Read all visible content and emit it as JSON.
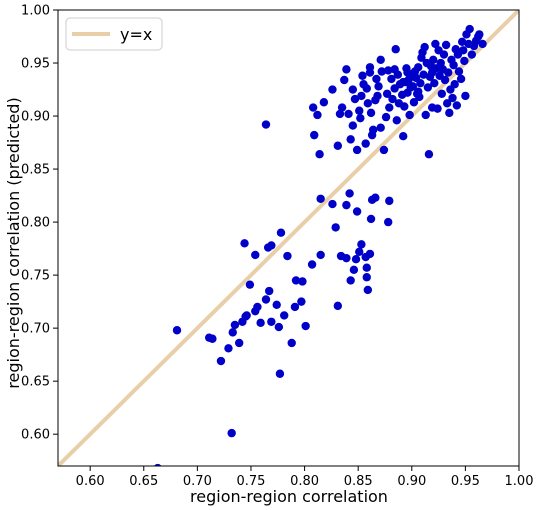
{
  "chart_data": {
    "type": "scatter",
    "title": "",
    "xlabel": "region-region correlation",
    "ylabel": "region-region correlation (predicted)",
    "xlim": [
      0.57,
      1.0
    ],
    "ylim": [
      0.57,
      1.0
    ],
    "xticks": [
      "0.60",
      "0.65",
      "0.70",
      "0.75",
      "0.80",
      "0.85",
      "0.90",
      "0.95",
      "1.00"
    ],
    "yticks": [
      "0.60",
      "0.65",
      "0.70",
      "0.75",
      "0.80",
      "0.85",
      "0.90",
      "0.95",
      "1.00"
    ],
    "grid": false,
    "legend_position": "top-left",
    "reference_line": {
      "name": "y=x",
      "color": "#e8cfa8"
    },
    "point_color": "#0000c8",
    "points": [
      [
        0.663,
        0.568
      ],
      [
        0.732,
        0.601
      ],
      [
        0.777,
        0.657
      ],
      [
        0.681,
        0.698
      ],
      [
        0.711,
        0.691
      ],
      [
        0.714,
        0.69
      ],
      [
        0.722,
        0.669
      ],
      [
        0.729,
        0.681
      ],
      [
        0.733,
        0.696
      ],
      [
        0.735,
        0.703
      ],
      [
        0.739,
        0.686
      ],
      [
        0.742,
        0.706
      ],
      [
        0.745,
        0.711
      ],
      [
        0.746,
        0.712
      ],
      [
        0.749,
        0.741
      ],
      [
        0.754,
        0.716
      ],
      [
        0.756,
        0.72
      ],
      [
        0.759,
        0.705
      ],
      [
        0.764,
        0.727
      ],
      [
        0.767,
        0.735
      ],
      [
        0.769,
        0.706
      ],
      [
        0.774,
        0.722
      ],
      [
        0.776,
        0.701
      ],
      [
        0.781,
        0.712
      ],
      [
        0.788,
        0.686
      ],
      [
        0.791,
        0.72
      ],
      [
        0.797,
        0.725
      ],
      [
        0.792,
        0.745
      ],
      [
        0.798,
        0.744
      ],
      [
        0.801,
        0.702
      ],
      [
        0.744,
        0.78
      ],
      [
        0.754,
        0.769
      ],
      [
        0.766,
        0.776
      ],
      [
        0.769,
        0.778
      ],
      [
        0.778,
        0.79
      ],
      [
        0.784,
        0.768
      ],
      [
        0.807,
        0.76
      ],
      [
        0.815,
        0.769
      ],
      [
        0.815,
        0.822
      ],
      [
        0.826,
        0.817
      ],
      [
        0.829,
        0.795
      ],
      [
        0.834,
        0.768
      ],
      [
        0.839,
        0.766
      ],
      [
        0.839,
        0.816
      ],
      [
        0.842,
        0.827
      ],
      [
        0.843,
        0.745
      ],
      [
        0.846,
        0.755
      ],
      [
        0.848,
        0.765
      ],
      [
        0.849,
        0.81
      ],
      [
        0.851,
        0.772
      ],
      [
        0.853,
        0.779
      ],
      [
        0.857,
        0.767
      ],
      [
        0.858,
        0.748
      ],
      [
        0.859,
        0.736
      ],
      [
        0.861,
        0.77
      ],
      [
        0.862,
        0.803
      ],
      [
        0.863,
        0.821
      ],
      [
        0.866,
        0.823
      ],
      [
        0.878,
        0.8
      ],
      [
        0.879,
        0.82
      ],
      [
        0.831,
        0.721
      ],
      [
        0.858,
        0.757
      ],
      [
        0.764,
        0.892
      ],
      [
        0.808,
        0.908
      ],
      [
        0.812,
        0.901
      ],
      [
        0.809,
        0.882
      ],
      [
        0.814,
        0.864
      ],
      [
        0.818,
        0.913
      ],
      [
        0.826,
        0.925
      ],
      [
        0.831,
        0.872
      ],
      [
        0.833,
        0.902
      ],
      [
        0.835,
        0.908
      ],
      [
        0.837,
        0.934
      ],
      [
        0.839,
        0.944
      ],
      [
        0.841,
        0.902
      ],
      [
        0.843,
        0.878
      ],
      [
        0.845,
        0.891
      ],
      [
        0.847,
        0.916
      ],
      [
        0.849,
        0.868
      ],
      [
        0.851,
        0.905
      ],
      [
        0.853,
        0.919
      ],
      [
        0.854,
        0.938
      ],
      [
        0.855,
        0.93
      ],
      [
        0.857,
        0.874
      ],
      [
        0.858,
        0.926
      ],
      [
        0.859,
        0.912
      ],
      [
        0.861,
        0.946
      ],
      [
        0.862,
        0.903
      ],
      [
        0.863,
        0.882
      ],
      [
        0.864,
        0.887
      ],
      [
        0.866,
        0.915
      ],
      [
        0.867,
        0.935
      ],
      [
        0.869,
        0.928
      ],
      [
        0.871,
        0.889
      ],
      [
        0.872,
        0.942
      ],
      [
        0.874,
        0.868
      ],
      [
        0.876,
        0.899
      ],
      [
        0.877,
        0.921
      ],
      [
        0.879,
        0.908
      ],
      [
        0.881,
        0.935
      ],
      [
        0.882,
        0.916
      ],
      [
        0.884,
        0.926
      ],
      [
        0.885,
        0.963
      ],
      [
        0.886,
        0.896
      ],
      [
        0.887,
        0.939
      ],
      [
        0.889,
        0.93
      ],
      [
        0.891,
        0.92
      ],
      [
        0.892,
        0.881
      ],
      [
        0.893,
        0.909
      ],
      [
        0.894,
        0.932
      ],
      [
        0.895,
        0.945
      ],
      [
        0.896,
        0.922
      ],
      [
        0.897,
        0.934
      ],
      [
        0.898,
        0.901
      ],
      [
        0.899,
        0.927
      ],
      [
        0.9,
        0.938
      ],
      [
        0.901,
        0.928
      ],
      [
        0.902,
        0.913
      ],
      [
        0.903,
        0.942
      ],
      [
        0.904,
        0.936
      ],
      [
        0.905,
        0.921
      ],
      [
        0.906,
        0.946
      ],
      [
        0.907,
        0.918
      ],
      [
        0.908,
        0.931
      ],
      [
        0.909,
        0.955
      ],
      [
        0.91,
        0.96
      ],
      [
        0.911,
        0.939
      ],
      [
        0.912,
        0.965
      ],
      [
        0.913,
        0.901
      ],
      [
        0.914,
        0.95
      ],
      [
        0.915,
        0.927
      ],
      [
        0.916,
        0.864
      ],
      [
        0.917,
        0.937
      ],
      [
        0.918,
        0.947
      ],
      [
        0.919,
        0.908
      ],
      [
        0.92,
        0.953
      ],
      [
        0.921,
        0.931
      ],
      [
        0.922,
        0.968
      ],
      [
        0.923,
        0.945
      ],
      [
        0.924,
        0.907
      ],
      [
        0.925,
        0.962
      ],
      [
        0.926,
        0.938
      ],
      [
        0.927,
        0.95
      ],
      [
        0.928,
        0.921
      ],
      [
        0.929,
        0.944
      ],
      [
        0.93,
        0.958
      ],
      [
        0.931,
        0.934
      ],
      [
        0.932,
        0.967
      ],
      [
        0.933,
        0.912
      ],
      [
        0.934,
        0.941
      ],
      [
        0.935,
        0.903
      ],
      [
        0.936,
        0.925
      ],
      [
        0.937,
        0.953
      ],
      [
        0.938,
        0.917
      ],
      [
        0.939,
        0.948
      ],
      [
        0.94,
        0.93
      ],
      [
        0.941,
        0.963
      ],
      [
        0.942,
        0.91
      ],
      [
        0.943,
        0.958
      ],
      [
        0.944,
        0.942
      ],
      [
        0.946,
        0.935
      ],
      [
        0.947,
        0.97
      ],
      [
        0.948,
        0.962
      ],
      [
        0.949,
        0.952
      ],
      [
        0.95,
        0.919
      ],
      [
        0.951,
        0.977
      ],
      [
        0.953,
        0.968
      ],
      [
        0.954,
        0.982
      ],
      [
        0.956,
        0.958
      ],
      [
        0.958,
        0.966
      ],
      [
        0.96,
        0.971
      ],
      [
        0.962,
        0.975
      ],
      [
        0.963,
        0.977
      ],
      [
        0.966,
        0.968
      ],
      [
        0.884,
        0.944
      ],
      [
        0.892,
        0.932
      ],
      [
        0.896,
        0.941
      ],
      [
        0.871,
        0.953
      ],
      [
        0.868,
        0.919
      ],
      [
        0.878,
        0.943
      ],
      [
        0.888,
        0.912
      ],
      [
        0.852,
        0.898
      ],
      [
        0.845,
        0.925
      ],
      [
        0.861,
        0.941
      ],
      [
        0.906,
        0.923
      ],
      [
        0.919,
        0.941
      ]
    ]
  }
}
